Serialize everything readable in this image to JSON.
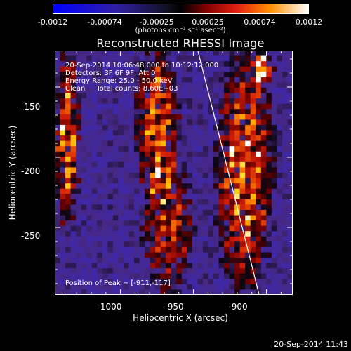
{
  "colorbar": {
    "ticks": [
      "-0.0012",
      "-0.00074",
      "-0.00025",
      "0.00025",
      "0.00074",
      "0.0012"
    ],
    "tick_values": [
      -0.0012,
      -0.00074,
      -0.00025,
      0.00025,
      0.00074,
      0.0012
    ],
    "units": "(photons cm⁻² s⁻¹ asec⁻²)",
    "colormap": [
      "#0000ff",
      "#4422aa",
      "#2a1a4a",
      "#000000",
      "#5a0000",
      "#c01010",
      "#ff6000",
      "#ffd000",
      "#ffffff"
    ]
  },
  "chart_data": {
    "type": "heatmap",
    "title": "Reconstructed RHESSI Image",
    "xlabel": "Heliocentric X (arcsec)",
    "ylabel": "Heliocentric Y (arcsec)",
    "xlim": [
      -1045,
      -882
    ],
    "ylim": [
      -298,
      -124
    ],
    "xticks": [
      -1000,
      -950,
      -900
    ],
    "xtick_labels": [
      "-1000",
      "-950",
      "-900"
    ],
    "yticks": [
      -150,
      -200,
      -250
    ],
    "ytick_labels": [
      "-150",
      "-200",
      "-250"
    ],
    "value_range": [
      -0.0012,
      0.0012
    ],
    "grid_cells": [
      45,
      46
    ],
    "bright_features": [
      {
        "x_range": [
          -1045,
          -1028
        ],
        "y_range": [
          -250,
          -124
        ],
        "level": "high"
      },
      {
        "x_range": [
          -990,
          -960
        ],
        "y_range": [
          -230,
          -124
        ],
        "level": "high"
      },
      {
        "x_range": [
          -985,
          -950
        ],
        "y_range": [
          -298,
          -200
        ],
        "level": "medium"
      },
      {
        "x_range": [
          -935,
          -895
        ],
        "y_range": [
          -298,
          -124
        ],
        "level": "high"
      },
      {
        "x_range": [
          -912,
          -895
        ],
        "y_range": [
          -150,
          -124
        ],
        "level": "peak"
      }
    ],
    "limb_line": {
      "x": [
        -947,
        -905
      ],
      "y": [
        -124,
        -298
      ]
    },
    "peak_position": [
      -911,
      -117
    ],
    "annotations": [
      "20-Sep-2014 10:06:48.000 to 10:12:12.000",
      "Detectors: 3F 6F 9F, Att 0",
      "Energy Range: 25.0 - 50.0 keV",
      "Clean     Total counts: 8.60E+03",
      "Position of Peak = [-911,-117]"
    ]
  },
  "timestamp": "20-Sep-2014 11:43"
}
